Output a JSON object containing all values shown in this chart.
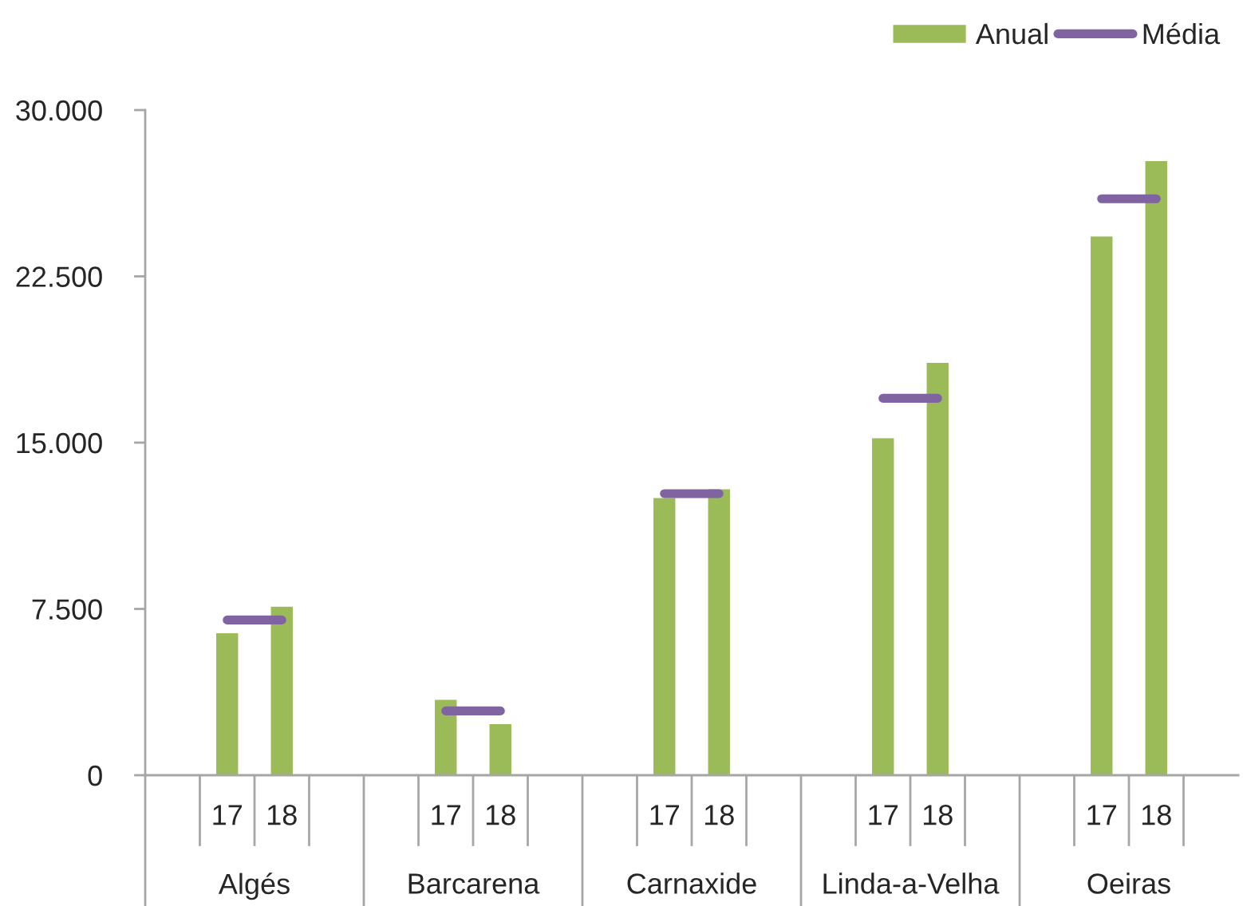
{
  "chart_data": {
    "type": "bar",
    "categories": [
      null,
      "17",
      "18",
      null,
      null,
      "17",
      "18",
      null,
      null,
      "17",
      "18",
      null,
      null,
      "17",
      "18",
      null,
      null,
      "17",
      "18",
      null
    ],
    "series": [
      {
        "name": "Anual",
        "color": "#9bbb59",
        "values": [
          null,
          6400,
          7600,
          null,
          null,
          3400,
          2300,
          null,
          null,
          12500,
          12900,
          null,
          null,
          15200,
          18600,
          null,
          null,
          24300,
          27700,
          null
        ]
      },
      {
        "name": "Média",
        "type": "line",
        "color": "#8064a2",
        "values": [
          null,
          7000,
          7000,
          null,
          null,
          2900,
          2900,
          null,
          null,
          12700,
          12700,
          null,
          null,
          17000,
          17000,
          null,
          null,
          26000,
          26000,
          null
        ]
      }
    ],
    "annotations": [
      "Algés",
      "Barcarena",
      "Carnaxide",
      "Linda-a-Velha",
      "Oeiras"
    ],
    "ylim": [
      0,
      30000
    ],
    "yticks": [
      0,
      {
        "value": 7500,
        "label": "7.500"
      },
      {
        "value": 15000,
        "label": "15.000"
      },
      {
        "value": 22500,
        "label": "22.500"
      },
      {
        "value": 30000,
        "label": "30.000"
      }
    ],
    "grid": false,
    "legend": "top right"
  }
}
